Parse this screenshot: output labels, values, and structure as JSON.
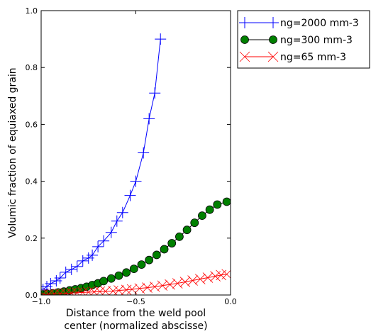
{
  "chart_data": {
    "type": "line",
    "xlabel": [
      "Distance from the weld pool",
      "center (normalized abscisse)"
    ],
    "ylabel": "Volumic fraction of equiaxed grain",
    "xlim": [
      -1.0,
      0.0
    ],
    "ylim": [
      0.0,
      1.0
    ],
    "xticks": [
      -1.0,
      -0.5,
      0.0
    ],
    "xtick_labels": [
      "−1.0",
      "−0.5",
      "0.0"
    ],
    "yticks": [
      0.0,
      0.2,
      0.4,
      0.6,
      0.8,
      1.0
    ],
    "ytick_labels": [
      "0.0",
      "0.2",
      "0.4",
      "0.6",
      "0.8",
      "1.0"
    ],
    "grid": false,
    "legend_position": "outside-right-top",
    "series": [
      {
        "name": "ng=2000 mm-3",
        "color": "#0000ff",
        "marker": "plus",
        "x": [
          -0.99,
          -0.97,
          -0.95,
          -0.92,
          -0.9,
          -0.87,
          -0.84,
          -0.81,
          -0.78,
          -0.75,
          -0.73,
          -0.7,
          -0.67,
          -0.63,
          -0.6,
          -0.57,
          -0.53,
          -0.5,
          -0.46,
          -0.43,
          -0.4,
          -0.37
        ],
        "y": [
          0.02,
          0.03,
          0.04,
          0.05,
          0.06,
          0.08,
          0.09,
          0.1,
          0.12,
          0.13,
          0.14,
          0.17,
          0.19,
          0.22,
          0.26,
          0.29,
          0.35,
          0.4,
          0.5,
          0.62,
          0.71,
          0.9
        ]
      },
      {
        "name": "ng=300 mm-3",
        "color": "#008000",
        "marker": "circle",
        "x": [
          -0.99,
          -0.97,
          -0.94,
          -0.91,
          -0.88,
          -0.85,
          -0.82,
          -0.79,
          -0.76,
          -0.73,
          -0.7,
          -0.67,
          -0.63,
          -0.59,
          -0.55,
          -0.51,
          -0.47,
          -0.43,
          -0.39,
          -0.35,
          -0.31,
          -0.27,
          -0.23,
          -0.19,
          -0.15,
          -0.11,
          -0.07,
          -0.02
        ],
        "y": [
          0.002,
          0.004,
          0.006,
          0.009,
          0.012,
          0.016,
          0.02,
          0.024,
          0.029,
          0.035,
          0.041,
          0.049,
          0.058,
          0.068,
          0.079,
          0.092,
          0.107,
          0.123,
          0.141,
          0.161,
          0.182,
          0.205,
          0.229,
          0.254,
          0.279,
          0.3,
          0.318,
          0.328
        ]
      },
      {
        "name": "ng=65 mm-3",
        "color": "#ff0000",
        "marker": "x",
        "x": [
          -0.99,
          -0.96,
          -0.93,
          -0.9,
          -0.87,
          -0.84,
          -0.81,
          -0.78,
          -0.75,
          -0.72,
          -0.69,
          -0.66,
          -0.62,
          -0.59,
          -0.55,
          -0.52,
          -0.48,
          -0.44,
          -0.4,
          -0.36,
          -0.32,
          -0.28,
          -0.24,
          -0.2,
          -0.16,
          -0.12,
          -0.08,
          -0.05,
          -0.02
        ],
        "y": [
          0.002,
          0.003,
          0.004,
          0.005,
          0.006,
          0.007,
          0.008,
          0.009,
          0.01,
          0.011,
          0.012,
          0.013,
          0.014,
          0.016,
          0.018,
          0.02,
          0.023,
          0.026,
          0.029,
          0.033,
          0.037,
          0.041,
          0.046,
          0.051,
          0.056,
          0.061,
          0.066,
          0.07,
          0.073
        ]
      }
    ]
  }
}
